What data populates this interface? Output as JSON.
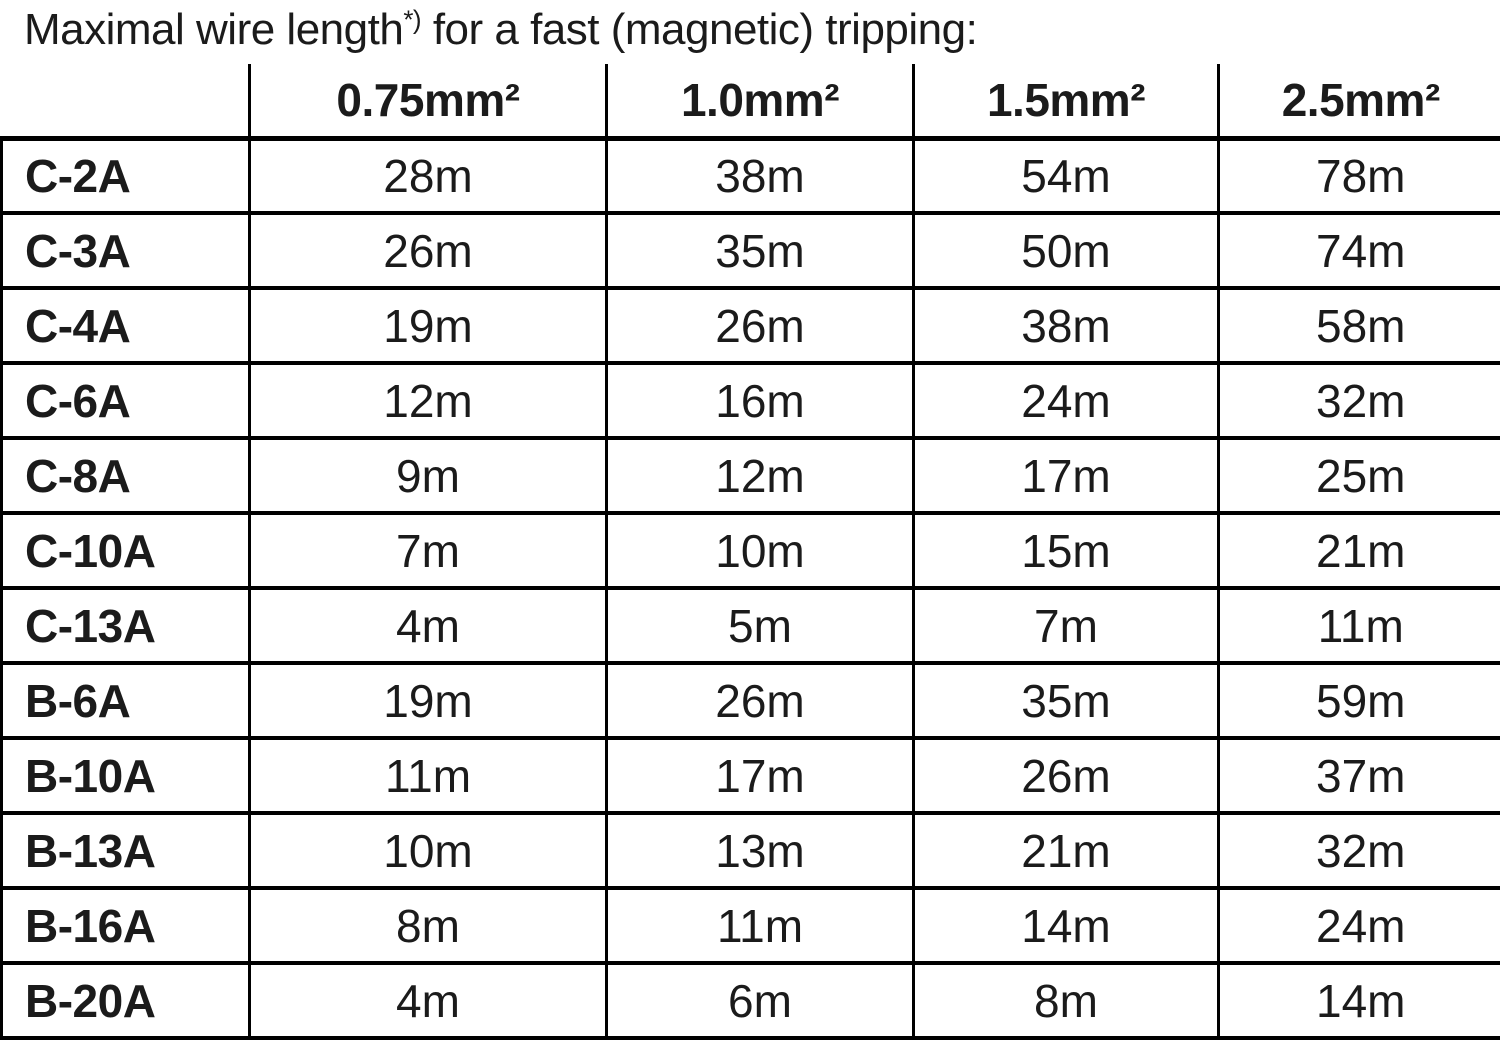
{
  "title": {
    "before_sup": "Maximal wire length",
    "sup": "*)",
    "after_sup": " for a fast (magnetic) tripping:"
  },
  "chart_data": {
    "type": "table",
    "title": "Maximal wire length*) for a fast (magnetic) tripping:",
    "columns": [
      "0.75mm²",
      "1.0mm²",
      "1.5mm²",
      "2.5mm²"
    ],
    "row_header_label": "",
    "rows": [
      {
        "label": "C-2A",
        "values": [
          "28m",
          "38m",
          "54m",
          "78m"
        ]
      },
      {
        "label": "C-3A",
        "values": [
          "26m",
          "35m",
          "50m",
          "74m"
        ]
      },
      {
        "label": "C-4A",
        "values": [
          "19m",
          "26m",
          "38m",
          "58m"
        ]
      },
      {
        "label": "C-6A",
        "values": [
          "12m",
          "16m",
          "24m",
          "32m"
        ]
      },
      {
        "label": "C-8A",
        "values": [
          "9m",
          "12m",
          "17m",
          "25m"
        ]
      },
      {
        "label": "C-10A",
        "values": [
          "7m",
          "10m",
          "15m",
          "21m"
        ]
      },
      {
        "label": "C-13A",
        "values": [
          "4m",
          "5m",
          "7m",
          "11m"
        ]
      },
      {
        "label": "B-6A",
        "values": [
          "19m",
          "26m",
          "35m",
          "59m"
        ]
      },
      {
        "label": "B-10A",
        "values": [
          "11m",
          "17m",
          "26m",
          "37m"
        ]
      },
      {
        "label": "B-13A",
        "values": [
          "10m",
          "13m",
          "21m",
          "32m"
        ]
      },
      {
        "label": "B-16A",
        "values": [
          "8m",
          "11m",
          "14m",
          "24m"
        ]
      },
      {
        "label": "B-20A",
        "values": [
          "4m",
          "6m",
          "8m",
          "14m"
        ]
      }
    ]
  },
  "colors": {
    "background": "#ffffff",
    "text": "#1b1b1b",
    "grid_line": "#000000"
  }
}
